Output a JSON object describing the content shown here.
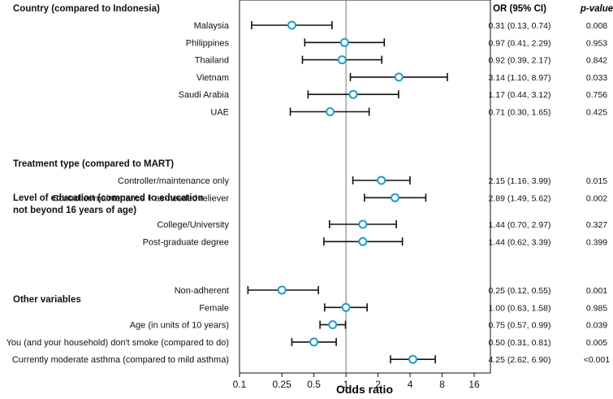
{
  "chart_data": {
    "type": "forest",
    "xlabel": "Odds ratio",
    "xscale": "log",
    "xlim": [
      0.1,
      20
    ],
    "xticks": [
      0.1,
      0.25,
      0.5,
      1,
      2,
      4,
      8,
      16
    ],
    "xtick_labels": [
      "0.1",
      "0.25",
      "0.5",
      "1",
      "2",
      "4",
      "8",
      "16"
    ],
    "reference_line": 1,
    "column_headers": {
      "or": "OR (95% CI)",
      "p": "p-value"
    },
    "groups": [
      {
        "title": "Country (compared to Indonesia)",
        "rows": [
          {
            "label": "Malaysia",
            "or": 0.31,
            "lo": 0.13,
            "hi": 0.74,
            "or_text": "0.31 (0.13, 0.74)",
            "p": "0.008"
          },
          {
            "label": "Philippines",
            "or": 0.97,
            "lo": 0.41,
            "hi": 2.29,
            "or_text": "0.97 (0.41, 2.29)",
            "p": "0.953"
          },
          {
            "label": "Thailand",
            "or": 0.92,
            "lo": 0.39,
            "hi": 2.17,
            "or_text": "0.92 (0.39, 2.17)",
            "p": "0.842"
          },
          {
            "label": "Vietnam",
            "or": 3.14,
            "lo": 1.1,
            "hi": 8.97,
            "or_text": "3.14 (1.10, 8.97)",
            "p": "0.033"
          },
          {
            "label": "Saudi Arabia",
            "or": 1.17,
            "lo": 0.44,
            "hi": 3.12,
            "or_text": "1.17 (0.44, 3.12)",
            "p": "0.756"
          },
          {
            "label": "UAE",
            "or": 0.71,
            "lo": 0.3,
            "hi": 1.65,
            "or_text": "0.71 (0.30, 1.65)",
            "p": "0.425"
          }
        ]
      },
      {
        "title": "Treatment type (compared to MART)",
        "rows": [
          {
            "label": "Controller/maintenance only",
            "or": 2.15,
            "lo": 1.16,
            "hi": 3.99,
            "or_text": "2.15 (1.16, 3.99)",
            "p": "0.015"
          },
          {
            "label": "Controller/maintenance + as-needed reliever",
            "or": 2.89,
            "lo": 1.49,
            "hi": 5.62,
            "or_text": "2.89 (1.49, 5.62)",
            "p": "0.002"
          }
        ]
      },
      {
        "title": "Level of education (compared to education not beyond 16 years of age)",
        "title_lines": [
          "Level of education (compared to education",
          "not beyond 16 years of age)"
        ],
        "rows": [
          {
            "label": "College/University",
            "or": 1.44,
            "lo": 0.7,
            "hi": 2.97,
            "or_text": "1.44 (0.70, 2.97)",
            "p": "0.327"
          },
          {
            "label": "Post-graduate degree",
            "or": 1.44,
            "lo": 0.62,
            "hi": 3.39,
            "or_text": "1.44 (0.62, 3.39)",
            "p": "0.399"
          }
        ]
      },
      {
        "title": "Other variables",
        "rows": [
          {
            "label": "Non-adherent",
            "or": 0.25,
            "lo": 0.12,
            "hi": 0.55,
            "or_text": "0.25 (0.12, 0.55)",
            "p": "0.001"
          },
          {
            "label": "Female",
            "or": 1.0,
            "lo": 0.63,
            "hi": 1.58,
            "or_text": "1.00 (0.63, 1.58)",
            "p": "0.985"
          },
          {
            "label": "Age (in units of 10 years)",
            "or": 0.75,
            "lo": 0.57,
            "hi": 0.99,
            "or_text": "0.75 (0.57, 0.99)",
            "p": "0.039"
          },
          {
            "label": "You (and your household) don't smoke (compared to do)",
            "or": 0.5,
            "lo": 0.31,
            "hi": 0.81,
            "or_text": "0.50 (0.31, 0.81)",
            "p": "0.005"
          },
          {
            "label": "Currently moderate asthma (compared to mild asthma)",
            "or": 4.25,
            "lo": 2.62,
            "hi": 6.9,
            "or_text": "4.25 (2.62, 6.90)",
            "p": "<0.001"
          }
        ]
      }
    ]
  },
  "colors": {
    "marker_stroke": "#1f9fc4",
    "marker_fill": "#ffffff",
    "ci_line": "#111111",
    "ref_line": "#777777",
    "axis": "#111111"
  }
}
